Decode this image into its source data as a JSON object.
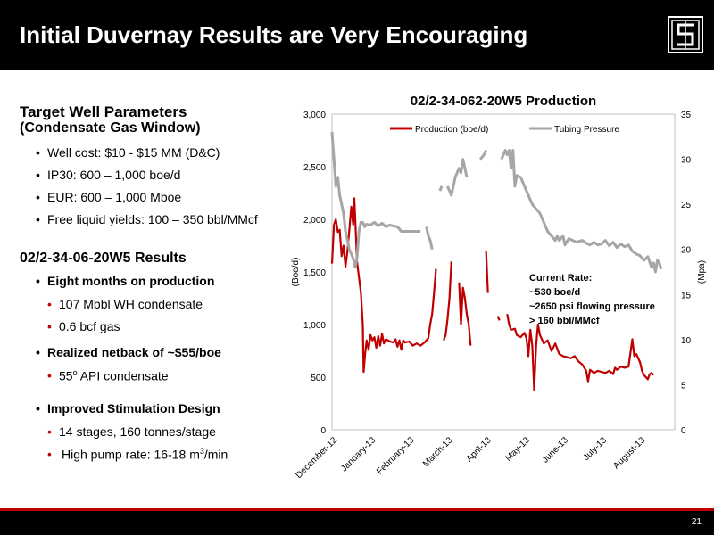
{
  "slide": {
    "title": "Initial Duvernay Results are Very Encouraging",
    "page_number": "21"
  },
  "left_panel": {
    "section1_title": "Target Well Parameters",
    "section1_subtitle": "(Condensate Gas Window)",
    "section1_bullets": [
      "Well cost: $10 - $15 MM (D&C)",
      "IP30: 600 – 1,000 boe/d",
      "EUR: 600 – 1,000 Mboe",
      "Free liquid yields: 100 – 350 bbl/MMcf"
    ],
    "section2_title": "02/2-34-06-20W5 Results",
    "results": {
      "months_label": "Eight months on production",
      "condensate": "107 Mbbl WH condensate",
      "gas": "0.6 bcf gas",
      "netback_label": "Realized netback of ~$55/boe",
      "api_value": "55",
      "api_sup": "o",
      "api_rest": " API condensate",
      "stimulation_label": "Improved Stimulation Design",
      "stages": "14 stages, 160 tonnes/stage",
      "pump_rate_prefix": "High pump rate: 16-18 m",
      "pump_rate_sup": "3",
      "pump_rate_suffix": "/min"
    }
  },
  "annotation": {
    "line1": "Current Rate:",
    "line2": "~530 boe/d",
    "line3": "~2650 psi flowing pressure",
    "line4": "> 160 bbl/MMcf"
  },
  "colors": {
    "production": "#c00000",
    "pressure": "#a6a6a6",
    "header": "#000000",
    "accent": "#c00000"
  },
  "chart_data": {
    "type": "line",
    "title": "02/2-34-062-20W5 Production",
    "ylabel_left": "(Boe/d)",
    "ylabel_right": "(Mpa)",
    "ylim_left": [
      0,
      3000
    ],
    "ylim_right": [
      0,
      35
    ],
    "yticks_left": [
      "0",
      "500",
      "1,000",
      "1,500",
      "2,000",
      "2,500",
      "3,000"
    ],
    "yticks_right": [
      "0",
      "5",
      "10",
      "15",
      "20",
      "25",
      "30",
      "35"
    ],
    "xlim": [
      0,
      8.9
    ],
    "months": [
      "December-12",
      "January-13",
      "February-13",
      "March-13",
      "April-13",
      "May-13",
      "June-13",
      "July-13",
      "August-13"
    ],
    "legend_position": "top",
    "series": [
      {
        "name": "Production  (boe/d)",
        "axis": "left",
        "segments": [
          [
            [
              0.0,
              1580
            ],
            [
              0.05,
              1950
            ],
            [
              0.1,
              2000
            ],
            [
              0.15,
              1880
            ],
            [
              0.2,
              1900
            ],
            [
              0.25,
              1650
            ],
            [
              0.3,
              1750
            ],
            [
              0.35,
              1550
            ],
            [
              0.4,
              1700
            ],
            [
              0.45,
              1900
            ],
            [
              0.5,
              2120
            ],
            [
              0.55,
              1950
            ],
            [
              0.58,
              2200
            ],
            [
              0.62,
              1850
            ],
            [
              0.65,
              1600
            ],
            [
              0.7,
              1450
            ],
            [
              0.75,
              1300
            ],
            [
              0.8,
              1000
            ],
            [
              0.82,
              550
            ],
            [
              0.86,
              720
            ],
            [
              0.9,
              850
            ],
            [
              0.95,
              760
            ],
            [
              1.0,
              900
            ],
            [
              1.05,
              850
            ],
            [
              1.1,
              880
            ],
            [
              1.15,
              780
            ],
            [
              1.2,
              890
            ],
            [
              1.25,
              800
            ],
            [
              1.3,
              910
            ],
            [
              1.35,
              820
            ],
            [
              1.4,
              860
            ],
            [
              1.5,
              840
            ],
            [
              1.6,
              830
            ],
            [
              1.65,
              860
            ],
            [
              1.7,
              790
            ],
            [
              1.75,
              850
            ],
            [
              1.8,
              760
            ],
            [
              1.85,
              850
            ],
            [
              1.9,
              830
            ],
            [
              2.0,
              840
            ],
            [
              2.1,
              800
            ],
            [
              2.2,
              820
            ],
            [
              2.3,
              800
            ],
            [
              2.4,
              830
            ],
            [
              2.5,
              870
            ],
            [
              2.55,
              1000
            ],
            [
              2.6,
              1100
            ],
            [
              2.65,
              1300
            ],
            [
              2.7,
              1530
            ]
          ],
          [
            [
              2.9,
              850
            ],
            [
              2.95,
              900
            ],
            [
              3.0,
              1050
            ],
            [
              3.05,
              1250
            ],
            [
              3.1,
              1600
            ]
          ],
          [
            [
              3.3,
              1400
            ],
            [
              3.35,
              1000
            ],
            [
              3.4,
              1350
            ],
            [
              3.45,
              1250
            ],
            [
              3.5,
              1100
            ],
            [
              3.55,
              1000
            ],
            [
              3.6,
              800
            ]
          ],
          [
            [
              4.0,
              1700
            ],
            [
              4.05,
              1300
            ]
          ],
          [
            [
              4.3,
              1080
            ],
            [
              4.35,
              1040
            ]
          ],
          [
            [
              4.55,
              1100
            ],
            [
              4.6,
              1000
            ],
            [
              4.65,
              950
            ],
            [
              4.75,
              960
            ],
            [
              4.8,
              900
            ],
            [
              4.9,
              880
            ],
            [
              5.0,
              920
            ],
            [
              5.05,
              870
            ],
            [
              5.1,
              700
            ],
            [
              5.15,
              950
            ],
            [
              5.2,
              800
            ],
            [
              5.25,
              380
            ],
            [
              5.3,
              800
            ],
            [
              5.35,
              1000
            ],
            [
              5.4,
              900
            ],
            [
              5.5,
              820
            ],
            [
              5.6,
              850
            ],
            [
              5.7,
              750
            ],
            [
              5.8,
              820
            ],
            [
              5.9,
              720
            ],
            [
              6.0,
              700
            ],
            [
              6.1,
              690
            ],
            [
              6.2,
              680
            ],
            [
              6.3,
              700
            ],
            [
              6.4,
              650
            ],
            [
              6.5,
              620
            ],
            [
              6.6,
              560
            ],
            [
              6.65,
              460
            ],
            [
              6.7,
              570
            ],
            [
              6.8,
              540
            ],
            [
              6.9,
              560
            ],
            [
              7.0,
              550
            ],
            [
              7.1,
              540
            ],
            [
              7.2,
              560
            ],
            [
              7.3,
              530
            ],
            [
              7.35,
              590
            ],
            [
              7.4,
              570
            ],
            [
              7.5,
              600
            ],
            [
              7.6,
              590
            ],
            [
              7.7,
              600
            ],
            [
              7.8,
              860
            ],
            [
              7.85,
              700
            ],
            [
              7.9,
              720
            ],
            [
              8.0,
              640
            ],
            [
              8.05,
              560
            ],
            [
              8.1,
              520
            ],
            [
              8.2,
              480
            ],
            [
              8.25,
              530
            ],
            [
              8.3,
              540
            ],
            [
              8.35,
              520
            ]
          ]
        ]
      },
      {
        "name": "Tubing Pressure",
        "axis": "right",
        "segments": [
          [
            [
              0.0,
              33
            ],
            [
              0.05,
              30
            ],
            [
              0.1,
              27
            ],
            [
              0.15,
              28
            ],
            [
              0.2,
              26
            ],
            [
              0.25,
              25
            ],
            [
              0.3,
              24
            ],
            [
              0.35,
              22
            ],
            [
              0.4,
              21
            ],
            [
              0.45,
              20
            ],
            [
              0.5,
              19.5
            ],
            [
              0.55,
              19
            ],
            [
              0.6,
              18
            ],
            [
              0.65,
              19
            ],
            [
              0.7,
              22
            ],
            [
              0.75,
              23
            ],
            [
              0.8,
              23
            ],
            [
              0.85,
              22.5
            ],
            [
              0.9,
              22.8
            ],
            [
              1.0,
              22.7
            ],
            [
              1.1,
              23
            ],
            [
              1.2,
              22.6
            ],
            [
              1.3,
              22.9
            ],
            [
              1.4,
              22.5
            ],
            [
              1.5,
              22.7
            ],
            [
              1.6,
              22.6
            ],
            [
              1.7,
              22.5
            ],
            [
              1.8,
              22
            ],
            [
              1.9,
              22
            ],
            [
              2.0,
              22
            ],
            [
              2.1,
              22
            ],
            [
              2.2,
              22
            ],
            [
              2.3,
              22
            ]
          ],
          [
            [
              2.45,
              22.5
            ],
            [
              2.5,
              21.5
            ],
            [
              2.55,
              21
            ],
            [
              2.6,
              20
            ]
          ],
          [
            [
              2.8,
              26.5
            ],
            [
              2.85,
              27
            ]
          ],
          [
            [
              3.0,
              27
            ],
            [
              3.1,
              26
            ],
            [
              3.2,
              28
            ],
            [
              3.3,
              29
            ],
            [
              3.35,
              28.5
            ],
            [
              3.4,
              30
            ],
            [
              3.45,
              29
            ],
            [
              3.5,
              28
            ]
          ],
          [
            [
              3.85,
              30
            ],
            [
              3.95,
              30.5
            ],
            [
              4.0,
              31
            ]
          ],
          [
            [
              4.4,
              30
            ],
            [
              4.5,
              31
            ],
            [
              4.55,
              30.5
            ],
            [
              4.6,
              31
            ],
            [
              4.65,
              29
            ],
            [
              4.7,
              31
            ],
            [
              4.75,
              27
            ],
            [
              4.8,
              28.2
            ],
            [
              4.9,
              28
            ],
            [
              5.0,
              27
            ],
            [
              5.1,
              26
            ],
            [
              5.2,
              25
            ],
            [
              5.3,
              24.5
            ],
            [
              5.4,
              24
            ],
            [
              5.5,
              23
            ],
            [
              5.6,
              22
            ],
            [
              5.7,
              21.5
            ],
            [
              5.8,
              21
            ],
            [
              5.85,
              21.5
            ],
            [
              5.9,
              21
            ],
            [
              6.0,
              21.5
            ],
            [
              6.05,
              20.5
            ],
            [
              6.15,
              21.2
            ],
            [
              6.25,
              21
            ],
            [
              6.35,
              20.8
            ],
            [
              6.5,
              21
            ],
            [
              6.6,
              20.7
            ],
            [
              6.7,
              20.5
            ],
            [
              6.8,
              20.8
            ],
            [
              6.9,
              20.5
            ],
            [
              7.0,
              20.6
            ],
            [
              7.1,
              21
            ],
            [
              7.2,
              20.4
            ],
            [
              7.3,
              20.8
            ],
            [
              7.4,
              20.2
            ],
            [
              7.5,
              20.6
            ],
            [
              7.6,
              20.3
            ],
            [
              7.7,
              20.5
            ],
            [
              7.8,
              19.8
            ],
            [
              7.9,
              19.5
            ],
            [
              8.0,
              19.3
            ],
            [
              8.1,
              18.8
            ],
            [
              8.2,
              19.2
            ],
            [
              8.3,
              18
            ],
            [
              8.35,
              18.5
            ],
            [
              8.4,
              17.5
            ],
            [
              8.45,
              18.8
            ],
            [
              8.5,
              18.5
            ],
            [
              8.55,
              17.8
            ]
          ]
        ]
      }
    ]
  }
}
